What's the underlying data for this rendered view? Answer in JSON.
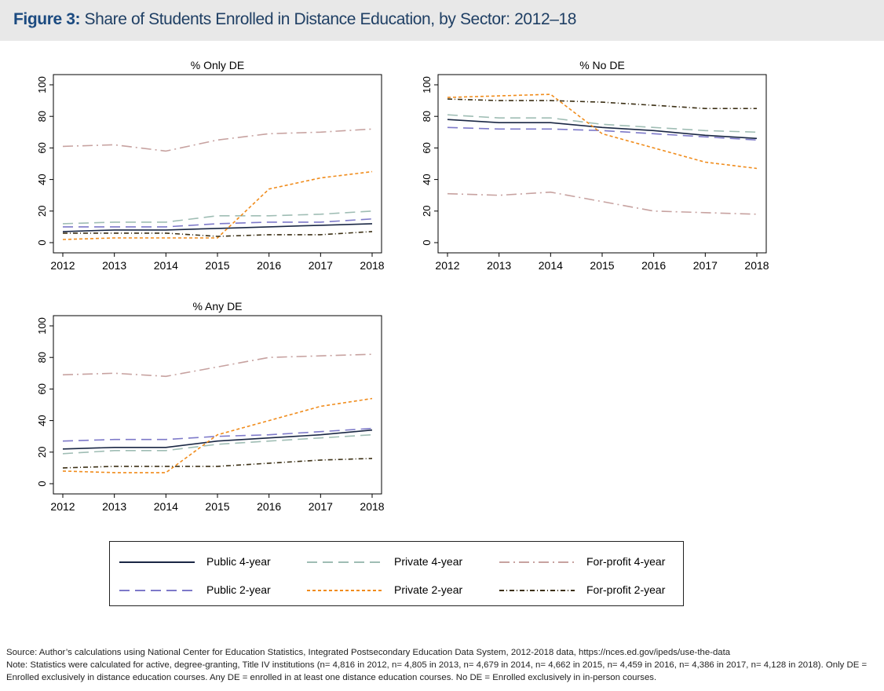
{
  "figure": {
    "label": "Figure 3:",
    "title": "Share of Students Enrolled in Distance Education, by Sector: 2012–18"
  },
  "chart_data": [
    {
      "type": "line",
      "title": "% Only DE",
      "x": [
        2012,
        2013,
        2014,
        2015,
        2016,
        2017,
        2018
      ],
      "ylim": [
        0,
        100
      ],
      "yticks": [
        0,
        20,
        40,
        60,
        80,
        100
      ],
      "series": [
        {
          "name": "Public 4-year",
          "values": [
            7,
            8,
            8,
            9,
            10,
            11,
            12
          ]
        },
        {
          "name": "Private 4-year",
          "values": [
            12,
            13,
            13,
            17,
            17,
            18,
            20
          ]
        },
        {
          "name": "For-profit 4-year",
          "values": [
            61,
            62,
            58,
            65,
            69,
            70,
            72
          ]
        },
        {
          "name": "Public 2-year",
          "values": [
            10,
            10,
            10,
            12,
            13,
            13,
            15
          ]
        },
        {
          "name": "Private 2-year",
          "values": [
            2,
            3,
            3,
            3,
            34,
            41,
            45
          ]
        },
        {
          "name": "For-profit 2-year",
          "values": [
            6,
            6,
            6,
            4,
            5,
            5,
            7
          ]
        }
      ]
    },
    {
      "type": "line",
      "title": "% No DE",
      "x": [
        2012,
        2013,
        2014,
        2015,
        2016,
        2017,
        2018
      ],
      "ylim": [
        0,
        100
      ],
      "yticks": [
        0,
        20,
        40,
        60,
        80,
        100
      ],
      "series": [
        {
          "name": "Public 4-year",
          "values": [
            78,
            76,
            76,
            73,
            71,
            68,
            66
          ]
        },
        {
          "name": "Private 4-year",
          "values": [
            81,
            79,
            79,
            75,
            73,
            71,
            70
          ]
        },
        {
          "name": "For-profit 4-year",
          "values": [
            31,
            30,
            32,
            26,
            20,
            19,
            18
          ]
        },
        {
          "name": "Public 2-year",
          "values": [
            73,
            72,
            72,
            71,
            69,
            67,
            65
          ]
        },
        {
          "name": "Private 2-year",
          "values": [
            92,
            93,
            94,
            69,
            60,
            51,
            47
          ]
        },
        {
          "name": "For-profit 2-year",
          "values": [
            91,
            90,
            90,
            89,
            87,
            85,
            85
          ]
        }
      ]
    },
    {
      "type": "line",
      "title": "% Any DE",
      "x": [
        2012,
        2013,
        2014,
        2015,
        2016,
        2017,
        2018
      ],
      "ylim": [
        0,
        100
      ],
      "yticks": [
        0,
        20,
        40,
        60,
        80,
        100
      ],
      "series": [
        {
          "name": "Public 4-year",
          "values": [
            22,
            23,
            23,
            27,
            29,
            31,
            34
          ]
        },
        {
          "name": "Private 4-year",
          "values": [
            19,
            21,
            21,
            25,
            27,
            29,
            31
          ]
        },
        {
          "name": "For-profit 4-year",
          "values": [
            69,
            70,
            68,
            74,
            80,
            81,
            82
          ]
        },
        {
          "name": "Public 2-year",
          "values": [
            27,
            28,
            28,
            30,
            31,
            33,
            35
          ]
        },
        {
          "name": "Private 2-year",
          "values": [
            8,
            7,
            7,
            31,
            40,
            49,
            54
          ]
        },
        {
          "name": "For-profit 2-year",
          "values": [
            10,
            11,
            11,
            11,
            13,
            15,
            16
          ]
        }
      ]
    }
  ],
  "series_styles": {
    "Public 4-year": {
      "color": "#1a2744",
      "dash": ""
    },
    "Private 4-year": {
      "color": "#9fbdb4",
      "dash": "13 7"
    },
    "For-profit 4-year": {
      "color": "#c7a2a0",
      "dash": "13 5 2 5"
    },
    "Public 2-year": {
      "color": "#7d79c9",
      "dash": "13 7"
    },
    "Private 2-year": {
      "color": "#f08c1c",
      "dash": "4 3"
    },
    "For-profit 2-year": {
      "color": "#3b2f14",
      "dash": "6 3 1 3"
    }
  },
  "legend": {
    "items": [
      "Public 4-year",
      "Private 4-year",
      "For-profit 4-year",
      "Public 2-year",
      "Private 2-year",
      "For-profit 2-year"
    ]
  },
  "footnotes": {
    "source": "Source: Author’s calculations using National Center for Education Statistics, Integrated Postsecondary Education Data System, 2012-2018 data, https://nces.ed.gov/ipeds/use-the-data",
    "note": "Note: Statistics were calculated for active, degree-granting, Title IV institutions (n= 4,816 in 2012, n= 4,805 in 2013, n= 4,679 in 2014, n= 4,662 in 2015, n= 4,459 in 2016, n= 4,386 in 2017, n= 4,128 in 2018). Only DE = Enrolled exclusively in distance education courses. Any DE = enrolled in at least one distance education courses. No DE = Enrolled exclusively in in-person courses."
  }
}
